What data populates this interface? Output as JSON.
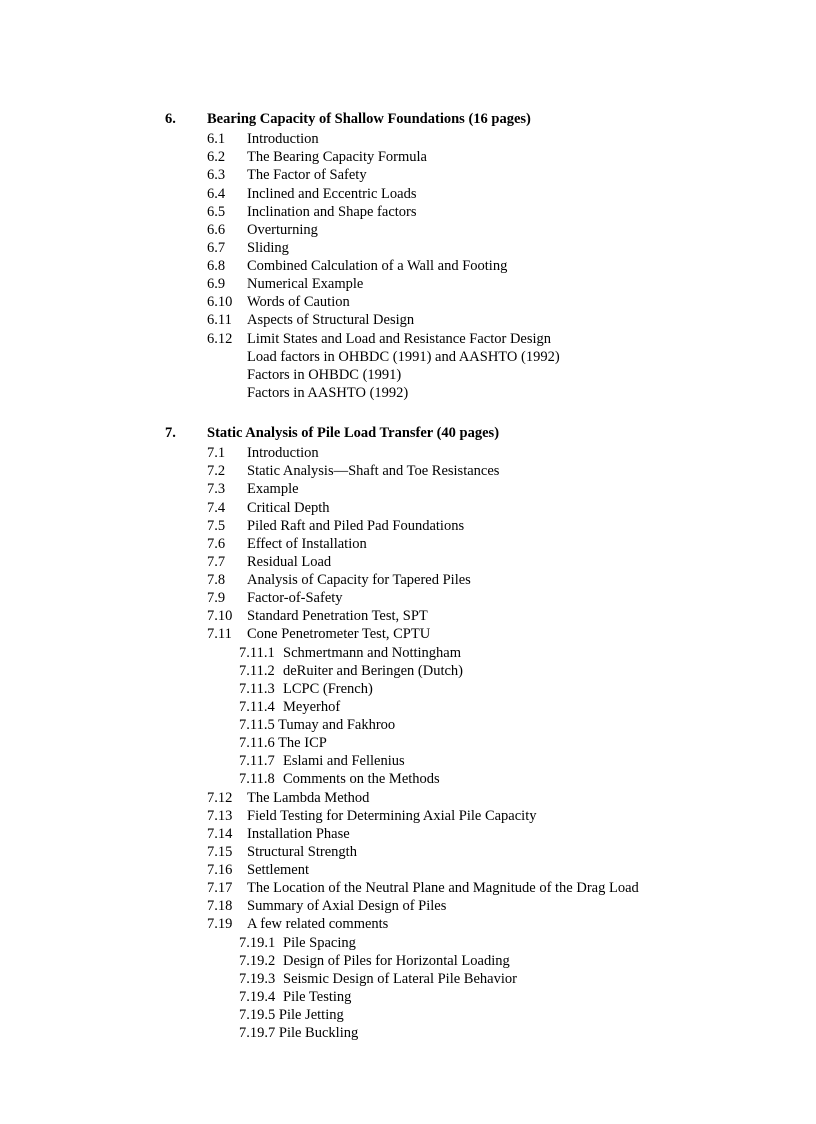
{
  "sections": [
    {
      "number": "6.",
      "title": "Bearing Capacity of Shallow Foundations  (16 pages)",
      "subs": [
        {
          "number": "6.1",
          "title": "Introduction"
        },
        {
          "number": "6.2",
          "title": "The Bearing Capacity Formula"
        },
        {
          "number": "6.3",
          "title": "The Factor of Safety"
        },
        {
          "number": "6.4",
          "title": "Inclined and Eccentric Loads"
        },
        {
          "number": "6.5",
          "title": "Inclination and Shape factors"
        },
        {
          "number": "6.6",
          "title": "Overturning"
        },
        {
          "number": "6.7",
          "title": "Sliding"
        },
        {
          "number": "6.8",
          "title": "Combined Calculation of a Wall and Footing"
        },
        {
          "number": "6.9",
          "title": "Numerical Example"
        },
        {
          "number": "6.10",
          "title": "Words of Caution"
        },
        {
          "number": "6.11",
          "title": "Aspects of Structural Design"
        },
        {
          "number": "6.12",
          "title": "Limit States and Load and Resistance Factor Design",
          "extra": [
            "Load factors in OHBDC (1991) and AASHTO (1992)",
            "Factors in OHBDC (1991)",
            "Factors in AASHTO (1992)"
          ]
        }
      ]
    },
    {
      "number": "7.",
      "title": "Static Analysis of Pile Load Transfer  (40 pages)",
      "subs": [
        {
          "number": "7.1",
          "title": "Introduction"
        },
        {
          "number": "7.2",
          "title": "Static Analysis—Shaft and Toe Resistances"
        },
        {
          "number": "7.3",
          "title": "Example"
        },
        {
          "number": "7.4",
          "title": "Critical Depth"
        },
        {
          "number": "7.5",
          "title": "Piled Raft and Piled Pad Foundations"
        },
        {
          "number": "7.6",
          "title": "Effect of Installation"
        },
        {
          "number": "7.7",
          "title": "Residual Load"
        },
        {
          "number": "7.8",
          "title": "Analysis of Capacity for Tapered Piles"
        },
        {
          "number": "7.9",
          "title": "Factor-of-Safety"
        },
        {
          "number": "7.10",
          "title": "Standard Penetration Test, SPT"
        },
        {
          "number": "7.11",
          "title": "Cone Penetrometer Test, CPTU",
          "subsubs": [
            {
              "number": "7.11.1",
              "title": "Schmertmann and Nottingham"
            },
            {
              "number": "7.11.2",
              "title": "deRuiter and Beringen (Dutch)"
            },
            {
              "number": "7.11.3",
              "title": "LCPC (French)"
            },
            {
              "number": "7.11.4",
              "title": "Meyerhof"
            },
            {
              "number": "7.11.5",
              "title": "Tumay and Fakhroo",
              "tight": true
            },
            {
              "number": "7.11.6",
              "title": "The ICP",
              "tight": true
            },
            {
              "number": "7.11.7",
              "title": "Eslami and Fellenius"
            },
            {
              "number": "7.11.8",
              "title": "Comments on the Methods"
            }
          ]
        },
        {
          "number": "7.12",
          "title": "The Lambda Method"
        },
        {
          "number": "7.13",
          "title": "Field Testing for Determining Axial Pile Capacity"
        },
        {
          "number": "7.14",
          "title": "Installation Phase"
        },
        {
          "number": "7.15",
          "title": "Structural Strength"
        },
        {
          "number": "7.16",
          "title": "Settlement"
        },
        {
          "number": "7.17",
          "title": "The Location of the Neutral Plane and Magnitude of the Drag Load"
        },
        {
          "number": "7.18",
          "title": "Summary of Axial Design of Piles"
        },
        {
          "number": "7.19",
          "title": "A few related comments",
          "subsubs": [
            {
              "number": "7.19.1",
              "title": "Pile Spacing"
            },
            {
              "number": "7.19.2",
              "title": "Design of Piles for Horizontal Loading"
            },
            {
              "number": "7.19.3",
              "title": "Seismic Design of Lateral Pile Behavior"
            },
            {
              "number": "7.19.4",
              "title": "Pile Testing"
            },
            {
              "number": "7.19.5",
              "title": "Pile Jetting",
              "tight": true
            },
            {
              "number": "7.19.7",
              "title": "Pile Buckling",
              "tight": true
            }
          ]
        }
      ]
    }
  ]
}
